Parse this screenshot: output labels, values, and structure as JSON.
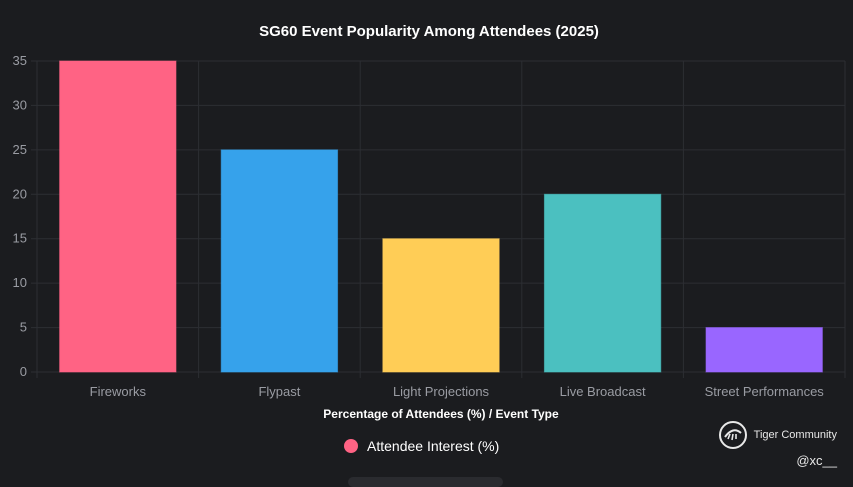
{
  "chart_data": {
    "type": "bar",
    "title": "SG60 Event Popularity Among Attendees (2025)",
    "categories": [
      "Fireworks",
      "Flypast",
      "Light Projections",
      "Live Broadcast",
      "Street Performances"
    ],
    "values": [
      35,
      25,
      15,
      20,
      5
    ],
    "colors": [
      "#ff6384",
      "#36a2eb",
      "#ffcd56",
      "#4bc0c0",
      "#9966ff"
    ],
    "xlabel": "Percentage of Attendees (%) / Event Type",
    "ylabel": "",
    "ylim": [
      0,
      35
    ],
    "yticks": [
      0,
      5,
      10,
      15,
      20,
      25,
      30,
      35
    ],
    "grid": true,
    "legend": {
      "position": "bottom",
      "label": "Attendee Interest (%)",
      "color": "#ff6384"
    }
  },
  "watermark": {
    "brand": "Tiger Community",
    "handle": "@xc__",
    "icon": "tiger-logo-icon"
  }
}
